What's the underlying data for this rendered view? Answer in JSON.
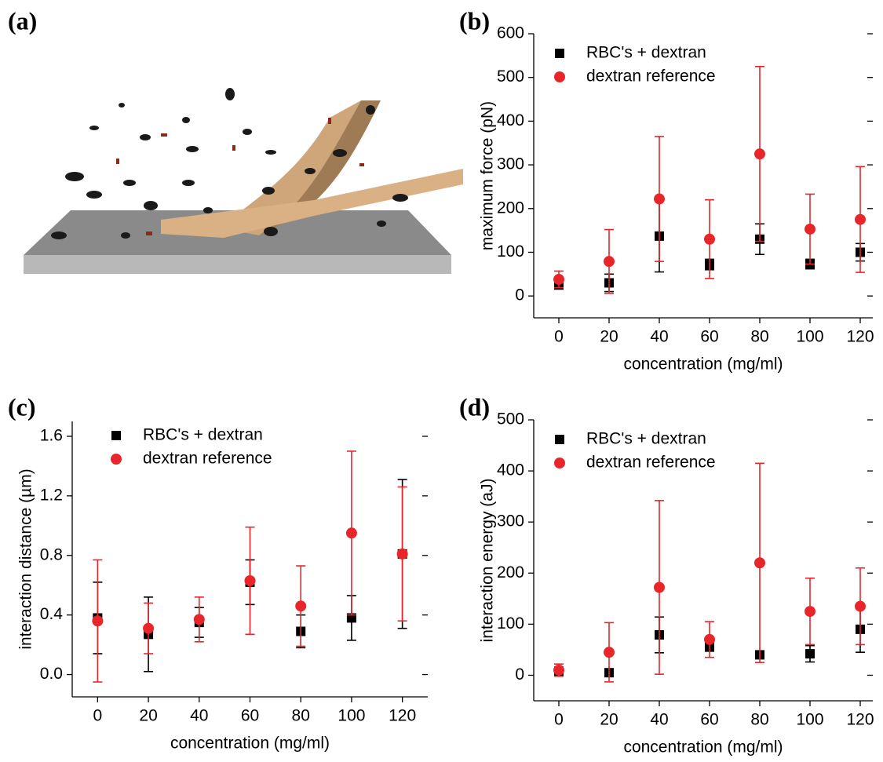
{
  "illustration": {
    "label": "(a)"
  },
  "chart_data": [
    {
      "type": "scatter",
      "label": "(b)",
      "x_label": "concentration (mg/ml)",
      "y_label": "maximum force (pN)",
      "x": [
        0,
        20,
        40,
        60,
        80,
        100,
        120
      ],
      "xlim": [
        -10,
        125
      ],
      "xticks": [
        0,
        20,
        40,
        60,
        80,
        100,
        120
      ],
      "ylim": [
        -50,
        600
      ],
      "yticks": [
        0,
        100,
        200,
        300,
        400,
        500,
        600
      ],
      "series": [
        {
          "name": "RBC's + dextran",
          "color": "#000000",
          "marker": "square",
          "values": [
            25,
            30,
            137,
            72,
            130,
            73,
            100
          ],
          "errors": [
            8,
            20,
            82,
            12,
            35,
            11,
            20
          ]
        },
        {
          "name": "dextran reference",
          "color": "#e8262a",
          "marker": "circle",
          "values": [
            38,
            79,
            222,
            130,
            325,
            153,
            175
          ],
          "errors": [
            19,
            73,
            143,
            90,
            200,
            80,
            121
          ]
        }
      ]
    },
    {
      "type": "scatter",
      "label": "(c)",
      "x_label": "concentration (mg/ml)",
      "y_label": "interaction distance (µm)",
      "x": [
        0,
        20,
        40,
        60,
        80,
        100,
        120
      ],
      "xlim": [
        -10,
        130
      ],
      "xticks": [
        0,
        20,
        40,
        60,
        80,
        100,
        120
      ],
      "ylim": [
        -0.15,
        1.7
      ],
      "yticks": [
        {
          "value": 0,
          "label": "0.0"
        },
        0.4,
        0.8,
        1.2,
        1.6
      ],
      "series": [
        {
          "name": "RBC's + dextran",
          "color": "#000000",
          "marker": "square",
          "values": [
            0.38,
            0.27,
            0.35,
            0.62,
            0.29,
            0.38,
            0.81
          ],
          "errors": [
            0.24,
            0.25,
            0.1,
            0.15,
            0.11,
            0.15,
            0.5
          ]
        },
        {
          "name": "dextran reference",
          "color": "#e8262a",
          "marker": "circle",
          "values": [
            0.36,
            0.31,
            0.37,
            0.63,
            0.46,
            0.95,
            0.81
          ],
          "errors": [
            0.41,
            0.17,
            0.15,
            0.36,
            0.27,
            0.55,
            0.45
          ]
        }
      ]
    },
    {
      "type": "scatter",
      "label": "(d)",
      "x_label": "concentration (mg/ml)",
      "y_label": "interaction energy (aJ)",
      "x": [
        0,
        20,
        40,
        60,
        80,
        100,
        120
      ],
      "xlim": [
        -10,
        125
      ],
      "xticks": [
        0,
        20,
        40,
        60,
        80,
        100,
        120
      ],
      "ylim": [
        -50,
        500
      ],
      "yticks": [
        0,
        100,
        200,
        300,
        400,
        500
      ],
      "series": [
        {
          "name": "RBC's + dextran",
          "color": "#000000",
          "marker": "square",
          "values": [
            8,
            5,
            79,
            57,
            40,
            42,
            90
          ],
          "errors": [
            5,
            3,
            35,
            10,
            5,
            16,
            45
          ]
        },
        {
          "name": "dextran reference",
          "color": "#e8262a",
          "marker": "circle",
          "values": [
            10,
            45,
            172,
            70,
            220,
            125,
            135
          ],
          "errors": [
            12,
            58,
            170,
            35,
            195,
            65,
            75
          ]
        }
      ]
    }
  ]
}
